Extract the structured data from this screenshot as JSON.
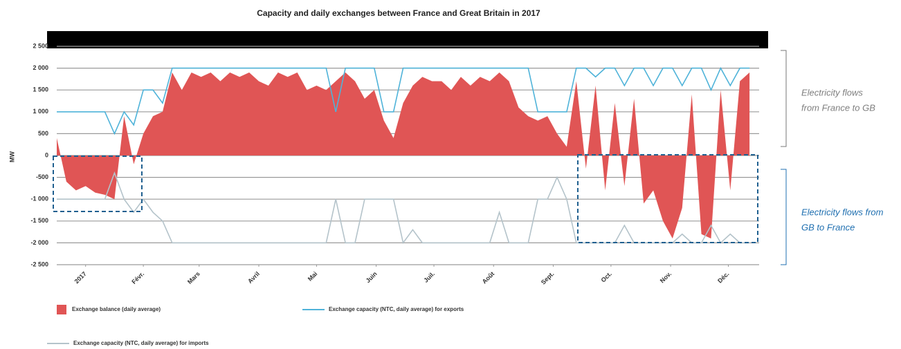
{
  "chart_data": {
    "type": "area-line",
    "title": "Capacity and daily exchanges between France and Great Britain in 2017",
    "ylabel": "MW",
    "xlim": [
      0,
      365
    ],
    "xticks": [
      {
        "value": 15,
        "label": "2017"
      },
      {
        "value": 45,
        "label": "Févr."
      },
      {
        "value": 74,
        "label": "Mars"
      },
      {
        "value": 105,
        "label": "Avril"
      },
      {
        "value": 135,
        "label": "Mai"
      },
      {
        "value": 166,
        "label": "Juin"
      },
      {
        "value": 196,
        "label": "Juil."
      },
      {
        "value": 227,
        "label": "Août"
      },
      {
        "value": 258,
        "label": "Sept."
      },
      {
        "value": 288,
        "label": "Oct."
      },
      {
        "value": 319,
        "label": "Nov."
      },
      {
        "value": 349,
        "label": "Déc."
      }
    ],
    "ylim": [
      -2500,
      2500
    ],
    "yticks": [
      {
        "value": 2500,
        "label": "2 500"
      },
      {
        "value": 2000,
        "label": "2 000"
      },
      {
        "value": 1500,
        "label": "1 500"
      },
      {
        "value": 1000,
        "label": "1 000"
      },
      500,
      0,
      -500,
      {
        "value": -1000,
        "label": "-1 000"
      },
      {
        "value": -1500,
        "label": "-1 500"
      },
      {
        "value": -2000,
        "label": "-2 000"
      },
      {
        "value": -2500,
        "label": "-2 500"
      }
    ],
    "grid": true,
    "x": [
      0,
      5,
      10,
      15,
      20,
      25,
      30,
      35,
      40,
      45,
      50,
      55,
      60,
      65,
      70,
      75,
      80,
      85,
      90,
      95,
      100,
      105,
      110,
      115,
      120,
      125,
      130,
      135,
      140,
      145,
      150,
      155,
      160,
      165,
      170,
      175,
      180,
      185,
      190,
      195,
      200,
      205,
      210,
      215,
      220,
      225,
      230,
      235,
      240,
      245,
      250,
      255,
      260,
      265,
      270,
      275,
      280,
      285,
      290,
      295,
      300,
      305,
      310,
      315,
      320,
      325,
      330,
      335,
      340,
      345,
      350,
      355,
      360
    ],
    "series": [
      {
        "name": "Exchange balance (daily average)",
        "kind": "area",
        "color": "#e05555",
        "values": [
          400,
          -600,
          -800,
          -700,
          -850,
          -900,
          -1000,
          900,
          -200,
          500,
          900,
          1000,
          1900,
          1500,
          1900,
          1800,
          1900,
          1700,
          1900,
          1800,
          1900,
          1700,
          1600,
          1900,
          1800,
          1900,
          1500,
          1600,
          1500,
          1700,
          1900,
          1700,
          1300,
          1500,
          800,
          400,
          1200,
          1600,
          1800,
          1700,
          1700,
          1500,
          1800,
          1600,
          1800,
          1700,
          1900,
          1700,
          1100,
          900,
          800,
          900,
          500,
          200,
          1700,
          -300,
          1600,
          -800,
          1200,
          -700,
          1300,
          -1100,
          -800,
          -1500,
          -1900,
          -1200,
          1400,
          -1800,
          -1900,
          1500,
          -800,
          1700,
          1900
        ]
      },
      {
        "name": "Exchange capacity (NTC, daily average) for exports",
        "kind": "line",
        "color": "#4fb3d9",
        "values": [
          1000,
          1000,
          1000,
          1000,
          1000,
          1000,
          500,
          1000,
          700,
          1500,
          1500,
          1200,
          2000,
          2000,
          2000,
          2000,
          2000,
          2000,
          2000,
          2000,
          2000,
          2000,
          2000,
          2000,
          2000,
          2000,
          2000,
          2000,
          2000,
          1000,
          2000,
          2000,
          2000,
          2000,
          1000,
          1000,
          2000,
          2000,
          2000,
          2000,
          2000,
          2000,
          2000,
          2000,
          2000,
          2000,
          2000,
          2000,
          2000,
          2000,
          1000,
          1000,
          1000,
          1000,
          2000,
          2000,
          1800,
          2000,
          2000,
          1600,
          2000,
          2000,
          1600,
          2000,
          2000,
          1600,
          2000,
          2000,
          1500,
          2000,
          1600,
          2000,
          2000
        ]
      },
      {
        "name": "Exchange capacity (NTC, daily average) for imports",
        "kind": "line",
        "color": "#b4c3ca",
        "values": [
          -1000,
          -1000,
          -1000,
          -1000,
          -1000,
          -1000,
          -400,
          -1000,
          -1300,
          -1000,
          -1300,
          -1500,
          -2000,
          -2000,
          -2000,
          -2000,
          -2000,
          -2000,
          -2000,
          -2000,
          -2000,
          -2000,
          -2000,
          -2000,
          -2000,
          -2000,
          -2000,
          -2000,
          -2000,
          -1000,
          -2000,
          -2000,
          -1000,
          -1000,
          -1000,
          -1000,
          -2000,
          -1700,
          -2000,
          -2000,
          -2000,
          -2000,
          -2000,
          -2000,
          -2000,
          -2000,
          -1300,
          -2000,
          -2000,
          -2000,
          -1000,
          -1000,
          -500,
          -1000,
          -2000,
          -2000,
          -2000,
          -2000,
          -2000,
          -1600,
          -2000,
          -2000,
          -2000,
          -2000,
          -2000,
          -1800,
          -2000,
          -2000,
          -1600,
          -2000,
          -1800,
          -2000,
          -2000
        ]
      }
    ],
    "annotations": [
      {
        "lines": [
          "Electricity flows",
          "from France to GB"
        ],
        "color": "#7f7f7f"
      },
      {
        "lines": [
          "Electricity flows from",
          "GB to France"
        ],
        "color": "#1f6fb0"
      }
    ]
  }
}
